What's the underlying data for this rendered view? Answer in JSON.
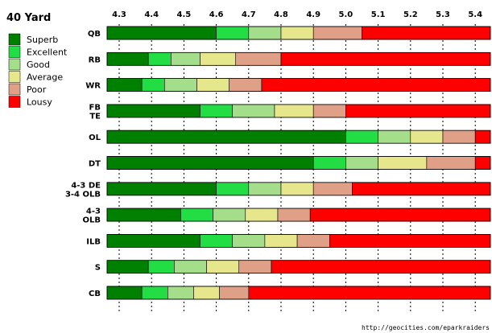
{
  "chart_data": {
    "type": "bar",
    "orientation": "horizontal-stacked",
    "title": "40 Yard",
    "source": "http://geocities.com/eparkraiders",
    "x_ticks": [
      "4.3",
      "4.4",
      "4.5",
      "4.6",
      "4.7",
      "4.8",
      "4.9",
      "5.0",
      "5.1",
      "5.2",
      "5.3",
      "5.4"
    ],
    "xlim": [
      4.25,
      5.45
    ],
    "grid": "dotted vertical lines at each tick",
    "legend_position": "left",
    "categories_legend": [
      {
        "name": "Superb",
        "color": "#008000"
      },
      {
        "name": "Excellent",
        "color": "#22dd44"
      },
      {
        "name": "Good",
        "color": "#a4de8a"
      },
      {
        "name": "Average",
        "color": "#e6e68c"
      },
      {
        "name": "Poor",
        "color": "#e0a088"
      },
      {
        "name": "Lousy",
        "color": "#ff0000"
      }
    ],
    "positions": [
      {
        "label": [
          "QB"
        ],
        "bounds": [
          4.25,
          4.6,
          4.7,
          4.8,
          4.9,
          5.05,
          5.45
        ]
      },
      {
        "label": [
          "RB"
        ],
        "bounds": [
          4.25,
          4.39,
          4.46,
          4.55,
          4.66,
          4.8,
          5.45
        ]
      },
      {
        "label": [
          "WR"
        ],
        "bounds": [
          4.25,
          4.37,
          4.44,
          4.54,
          4.64,
          4.74,
          5.45
        ]
      },
      {
        "label": [
          "FB",
          "TE"
        ],
        "bounds": [
          4.25,
          4.55,
          4.65,
          4.78,
          4.9,
          5.0,
          5.45
        ]
      },
      {
        "label": [
          "OL"
        ],
        "bounds": [
          4.25,
          5.0,
          5.1,
          5.2,
          5.3,
          5.4,
          5.45
        ]
      },
      {
        "label": [
          "DT"
        ],
        "bounds": [
          4.25,
          4.9,
          5.0,
          5.1,
          5.25,
          5.4,
          5.45
        ]
      },
      {
        "label": [
          "4-3 DE",
          "3-4 OLB"
        ],
        "bounds": [
          4.25,
          4.6,
          4.7,
          4.8,
          4.9,
          5.02,
          5.45
        ]
      },
      {
        "label": [
          "4-3",
          "OLB"
        ],
        "bounds": [
          4.25,
          4.49,
          4.59,
          4.69,
          4.79,
          4.89,
          5.45
        ]
      },
      {
        "label": [
          "ILB"
        ],
        "bounds": [
          4.25,
          4.55,
          4.65,
          4.75,
          4.85,
          4.95,
          5.45
        ]
      },
      {
        "label": [
          "S"
        ],
        "bounds": [
          4.25,
          4.39,
          4.47,
          4.57,
          4.67,
          4.77,
          5.45
        ]
      },
      {
        "label": [
          "CB"
        ],
        "bounds": [
          4.25,
          4.37,
          4.45,
          4.53,
          4.61,
          4.7,
          5.45
        ]
      }
    ]
  }
}
